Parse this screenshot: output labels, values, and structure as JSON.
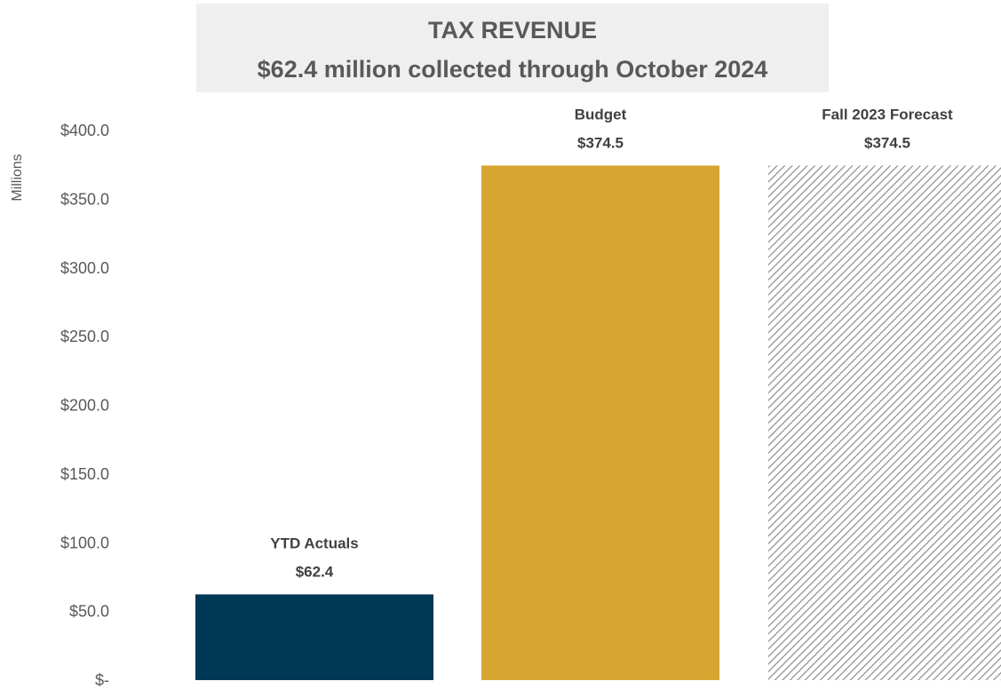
{
  "chart_data": {
    "type": "bar",
    "title": "TAX REVENUE",
    "subtitle": "$62.4 million collected through October 2024",
    "ylabel": "Millions",
    "xlabel": "",
    "ylim": [
      0,
      400
    ],
    "yticks": [
      {
        "value": 0,
        "label": "$-"
      },
      {
        "value": 50,
        "label": "$50.0"
      },
      {
        "value": 100,
        "label": "$100.0"
      },
      {
        "value": 150,
        "label": "$150.0"
      },
      {
        "value": 200,
        "label": "$200.0"
      },
      {
        "value": 250,
        "label": "$250.0"
      },
      {
        "value": 300,
        "label": "$300.0"
      },
      {
        "value": 350,
        "label": "$350.0"
      },
      {
        "value": 400,
        "label": "$400.0"
      }
    ],
    "grid": false,
    "categories": [
      "YTD Actuals",
      "Budget",
      "Fall 2023 Forecast"
    ],
    "values": [
      62.4,
      374.5,
      374.5
    ],
    "value_labels": [
      "$62.4",
      "$374.5",
      "$374.5"
    ],
    "fills": [
      "solid",
      "solid",
      "hatched"
    ],
    "colors": {
      "ytd_actuals": "#003857",
      "budget": "#D7A531",
      "forecast_hatch": "#8c8c8c",
      "title_background": "#EFEFEF",
      "title_text": "#595959",
      "axis_text": "#595959",
      "label_text": "#404040"
    }
  }
}
